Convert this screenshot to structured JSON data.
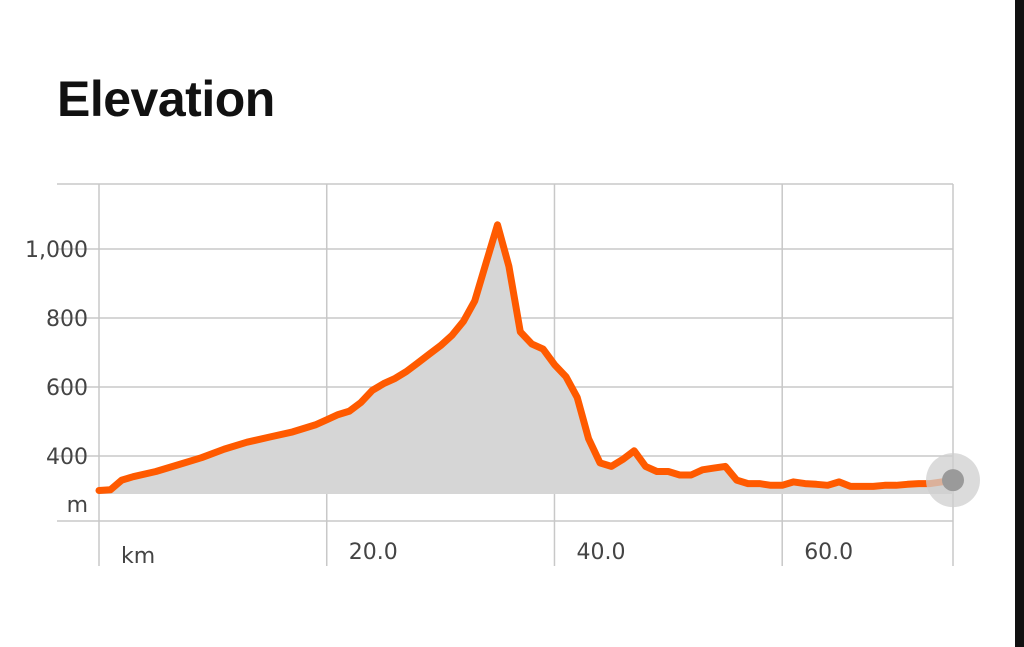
{
  "title": "Elevation",
  "chart_data": {
    "type": "area",
    "xlabel": "km",
    "ylabel": "m",
    "xlim": [
      0,
      75
    ],
    "ylim": [
      200,
      1200
    ],
    "x_ticks": [
      {
        "value": 20,
        "label": "20.0"
      },
      {
        "value": 40,
        "label": "40.0"
      },
      {
        "value": 60,
        "label": "60.0"
      }
    ],
    "y_ticks": [
      {
        "value": 400,
        "label": "400"
      },
      {
        "value": 600,
        "label": "600"
      },
      {
        "value": 800,
        "label": "800"
      },
      {
        "value": 1000,
        "label": "1,000"
      }
    ],
    "grid": true,
    "line_color": "#ff5a00",
    "fill_color": "#d6d6d6",
    "grid_color": "#c8c8c8",
    "series": [
      {
        "x": [
          0,
          1,
          2,
          3,
          5,
          7,
          9,
          11,
          13,
          15,
          17,
          19,
          20,
          21,
          22,
          23,
          24,
          25,
          26,
          27,
          28,
          29,
          30,
          31,
          32,
          33,
          34,
          35,
          36,
          37,
          38,
          39,
          40,
          41,
          42,
          43,
          44,
          45,
          46,
          47,
          48,
          49,
          50,
          51,
          52,
          53,
          54,
          55,
          56,
          57,
          58,
          59,
          60,
          61,
          62,
          63,
          64,
          65,
          66,
          67,
          68,
          69,
          70,
          71,
          72,
          73,
          74,
          75
        ],
        "y": [
          300,
          302,
          330,
          340,
          355,
          375,
          395,
          420,
          440,
          455,
          470,
          490,
          505,
          520,
          530,
          555,
          590,
          610,
          625,
          645,
          670,
          695,
          720,
          750,
          790,
          850,
          960,
          1070,
          950,
          760,
          725,
          710,
          665,
          630,
          570,
          450,
          380,
          370,
          390,
          415,
          370,
          355,
          355,
          345,
          345,
          360,
          365,
          370,
          330,
          320,
          320,
          315,
          315,
          325,
          320,
          318,
          315,
          325,
          312,
          312,
          312,
          315,
          315,
          318,
          320,
          320,
          325,
          330
        ]
      }
    ]
  }
}
